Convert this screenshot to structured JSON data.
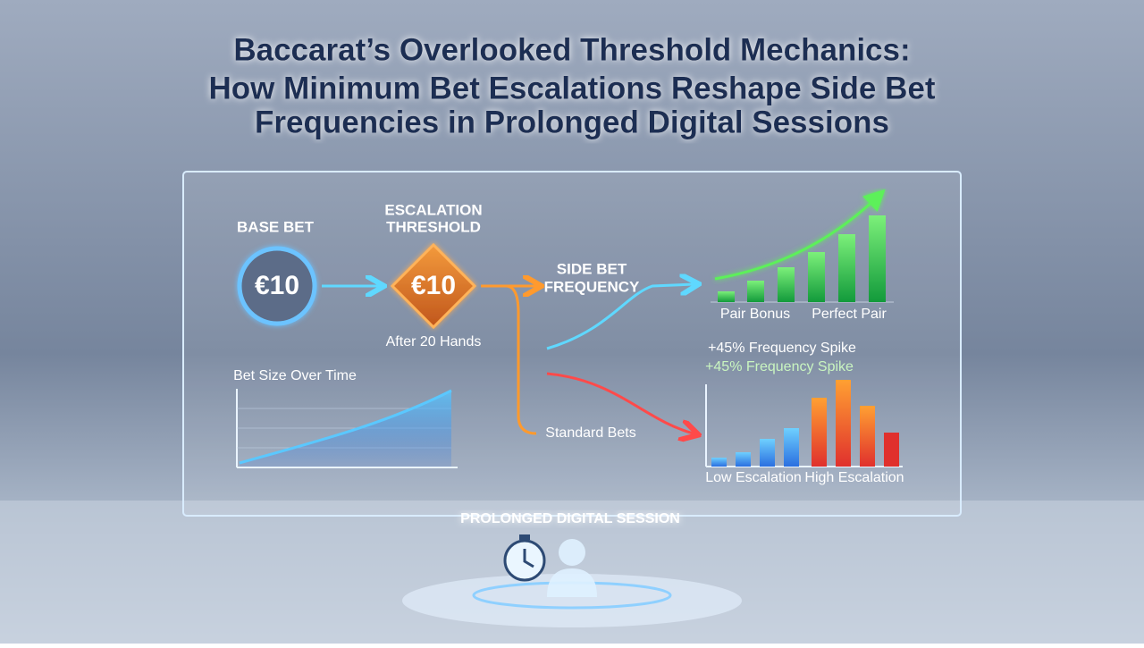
{
  "header": {
    "title_lines": [
      "Baccarat’s Overlooked Threshold Mechanics:",
      "How Minimum Bet Escalations Reshape Side Bet",
      "Frequencies in Prolonged Digital Sessions"
    ]
  },
  "flow": {
    "base_bet": {
      "label": "BASE BET",
      "amount": "€10"
    },
    "threshold": {
      "label_lines": [
        "ESCALATION",
        "THRESHOLD"
      ],
      "amount": "€10",
      "note": "After 20 Hands"
    },
    "side_bet": {
      "label_lines": [
        "SIDE BET",
        "FREQUENCY"
      ]
    },
    "standard": {
      "label": "Standard Bets"
    }
  },
  "bet_chart": {
    "title": "Bet Size Over Time"
  },
  "side_chart": {
    "labels": [
      "Pair Bonus",
      "Perfect Pair"
    ]
  },
  "spike_chart": {
    "annotations": [
      "+45% Frequency Spike",
      "+45% Frequency Spike"
    ],
    "labels": [
      "Low Escalation",
      "High Escalation"
    ]
  },
  "footer": {
    "label": "PROLONGED DIGITAL SESSION"
  }
}
